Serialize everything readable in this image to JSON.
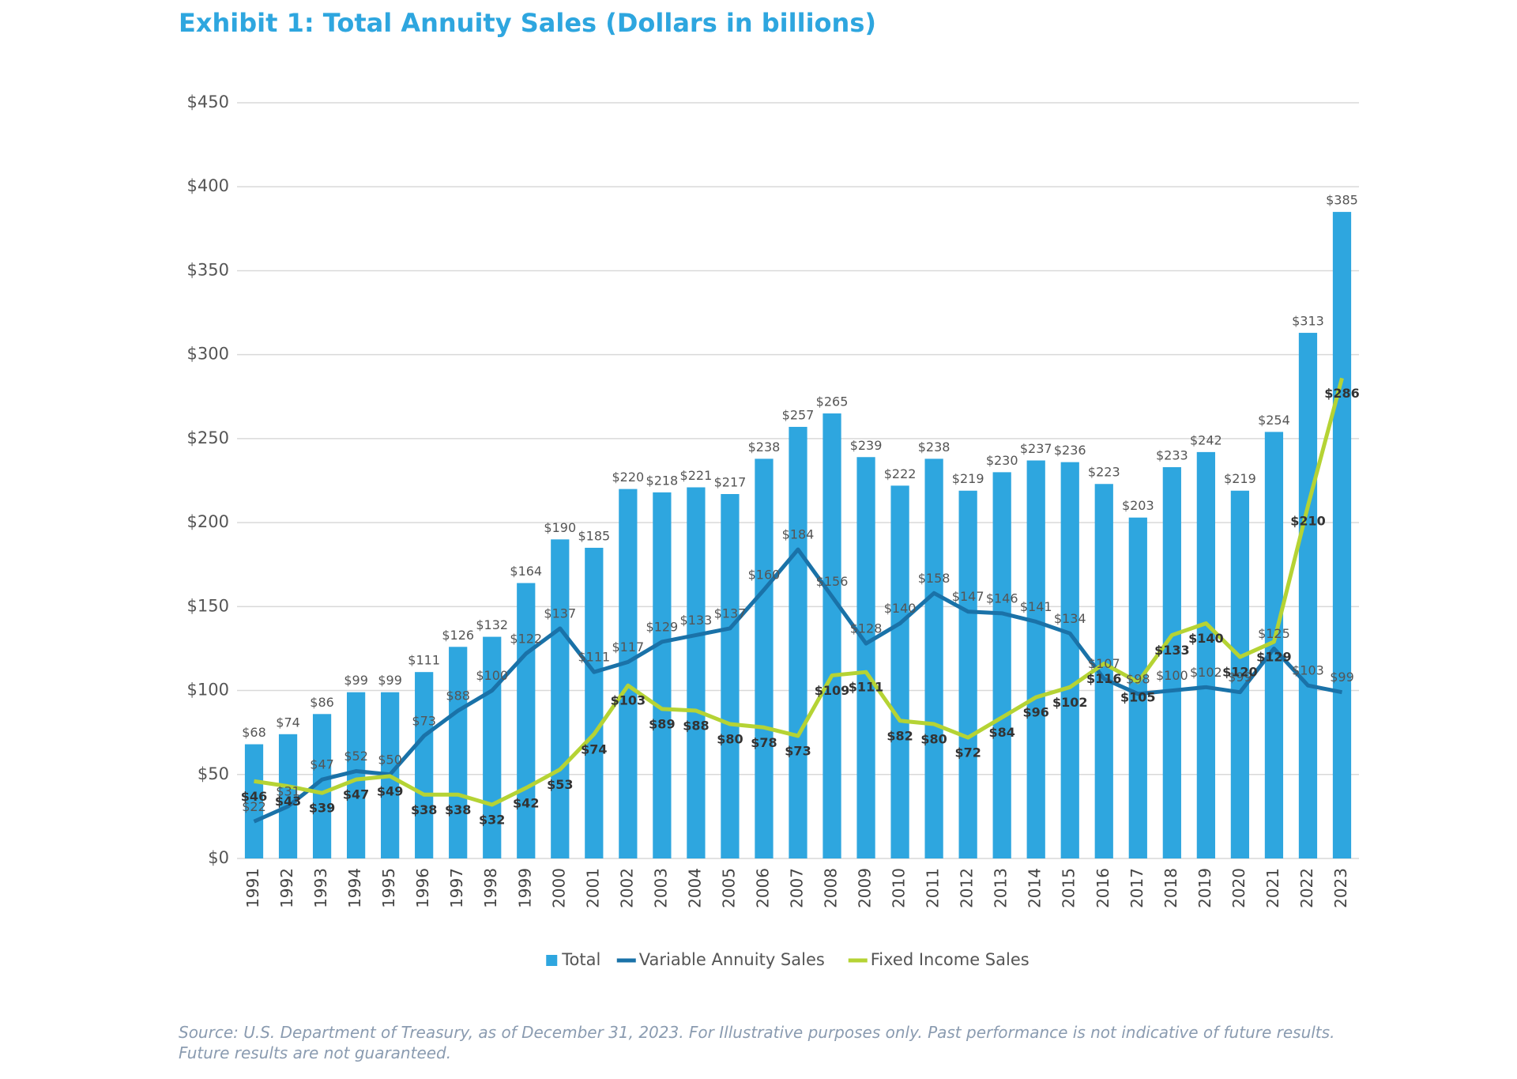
{
  "chart_data": {
    "type": "bar",
    "title": "Exhibit 1: Total Annuity Sales (Dollars in billions)",
    "source": "Source: U.S. Department of Treasury, as of December 31, 2023. For Illustrative purposes only. Past performance is not indicative of future results. Future results are not guaranteed.",
    "categories": [
      "1991",
      "1992",
      "1993",
      "1994",
      "1995",
      "1996",
      "1997",
      "1998",
      "1999",
      "2000",
      "2001",
      "2002",
      "2003",
      "2004",
      "2005",
      "2006",
      "2007",
      "2008",
      "2009",
      "2010",
      "2011",
      "2012",
      "2013",
      "2014",
      "2015",
      "2016",
      "2017",
      "2018",
      "2019",
      "2020",
      "2021",
      "2022",
      "2023"
    ],
    "series": [
      {
        "name": "Total",
        "type": "bar",
        "color": "#2ea6df",
        "values": [
          68,
          74,
          86,
          99,
          99,
          111,
          126,
          132,
          164,
          190,
          185,
          220,
          218,
          221,
          217,
          238,
          257,
          265,
          239,
          222,
          238,
          219,
          230,
          237,
          236,
          223,
          203,
          233,
          242,
          219,
          254,
          313,
          385
        ],
        "value_labels": [
          "$68",
          "$74",
          "$86",
          "$99",
          "$99",
          "$111",
          "$126",
          "$132",
          "$164",
          "$190",
          "$185",
          "$220",
          "$218",
          "$221",
          "$217",
          "$238",
          "$257",
          "$265",
          "$239",
          "$222",
          "$238",
          "$219",
          "$230",
          "$237",
          "$236",
          "$223",
          "$203",
          "$233",
          "$242",
          "$219",
          "$254",
          "$313",
          "$385"
        ]
      },
      {
        "name": "Variable Annuity Sales",
        "type": "line",
        "color": "#1a72a8",
        "values": [
          22,
          31,
          47,
          52,
          50,
          73,
          88,
          100,
          122,
          137,
          111,
          117,
          129,
          133,
          137,
          160,
          184,
          156,
          128,
          140,
          158,
          147,
          146,
          141,
          134,
          107,
          98,
          100,
          102,
          99,
          125,
          103,
          99
        ],
        "value_labels": [
          "$22",
          "$31",
          "$47",
          "$52",
          "$50",
          "$73",
          "$88",
          "$100",
          "$122",
          "$137",
          "$111",
          "$117",
          "$129",
          "$133",
          "$137",
          "$160",
          "$184",
          "$156",
          "$128",
          "$140",
          "$158",
          "$147",
          "$146",
          "$141",
          "$134",
          "$107",
          "$98",
          "$100",
          "$102",
          "$99",
          "$125",
          "$103",
          "$99"
        ]
      },
      {
        "name": "Fixed Income Sales",
        "type": "line",
        "color": "#b5d334",
        "values": [
          46,
          43,
          39,
          47,
          49,
          38,
          38,
          32,
          42,
          53,
          74,
          103,
          89,
          88,
          80,
          78,
          73,
          109,
          111,
          82,
          80,
          72,
          84,
          96,
          102,
          116,
          105,
          133,
          140,
          120,
          129,
          210,
          286
        ],
        "value_labels": [
          "$46",
          "$43",
          "$39",
          "$47",
          "$49",
          "$38",
          "$38",
          "$32",
          "$42",
          "$53",
          "$74",
          "$103",
          "$89",
          "$88",
          "$80",
          "$78",
          "$73",
          "$109",
          "$111",
          "$82",
          "$80",
          "$72",
          "$84",
          "$96",
          "$102",
          "$116",
          "$105",
          "$133",
          "$140",
          "$120",
          "$129",
          "$210",
          "$286"
        ]
      }
    ],
    "ylim": [
      0,
      450
    ],
    "yticks": [
      {
        "value": 0,
        "label": "$0"
      },
      {
        "value": 50,
        "label": "$50"
      },
      {
        "value": 100,
        "label": "$100"
      },
      {
        "value": 150,
        "label": "$150"
      },
      {
        "value": 200,
        "label": "$200"
      },
      {
        "value": 250,
        "label": "$250"
      },
      {
        "value": 300,
        "label": "$300"
      },
      {
        "value": 350,
        "label": "$350"
      },
      {
        "value": 400,
        "label": "$400"
      },
      {
        "value": 450,
        "label": "$450"
      }
    ],
    "grid": true,
    "legend": "bottom"
  }
}
